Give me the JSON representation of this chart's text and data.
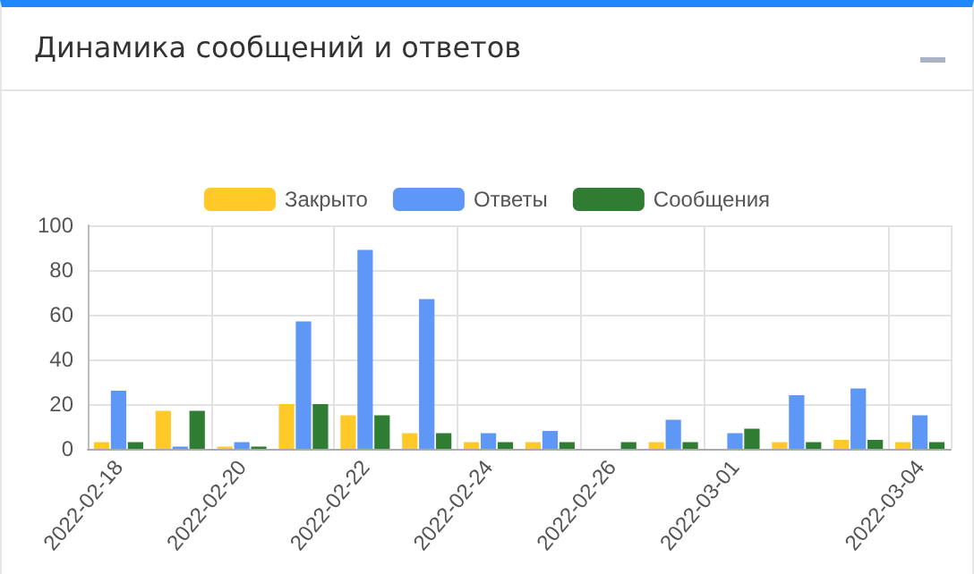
{
  "chart_data": {
    "type": "bar",
    "title": "Динамика сообщений и ответов",
    "categories": [
      "2022-02-18",
      null,
      "2022-02-20",
      null,
      "2022-02-22",
      null,
      "2022-02-24",
      null,
      "2022-02-26",
      null,
      "2022-03-01",
      null,
      null,
      "2022-03-04"
    ],
    "series": [
      {
        "name": "Закрыто",
        "color": "#ffca28",
        "values": [
          3,
          17,
          1,
          20,
          15,
          7,
          3,
          3,
          0,
          3,
          0,
          3,
          4,
          3
        ]
      },
      {
        "name": "Ответы",
        "color": "#5e97f6",
        "values": [
          26,
          1,
          3,
          57,
          89,
          67,
          7,
          8,
          0,
          13,
          7,
          24,
          27,
          15
        ]
      },
      {
        "name": "Сообщения",
        "color": "#2e7d32",
        "values": [
          3,
          17,
          1,
          20,
          15,
          7,
          3,
          3,
          3,
          3,
          9,
          3,
          4,
          3
        ]
      }
    ],
    "ylim": [
      0,
      100
    ],
    "yticks": [
      0,
      20,
      40,
      60,
      80,
      100
    ],
    "grid": true,
    "legend": "top"
  }
}
